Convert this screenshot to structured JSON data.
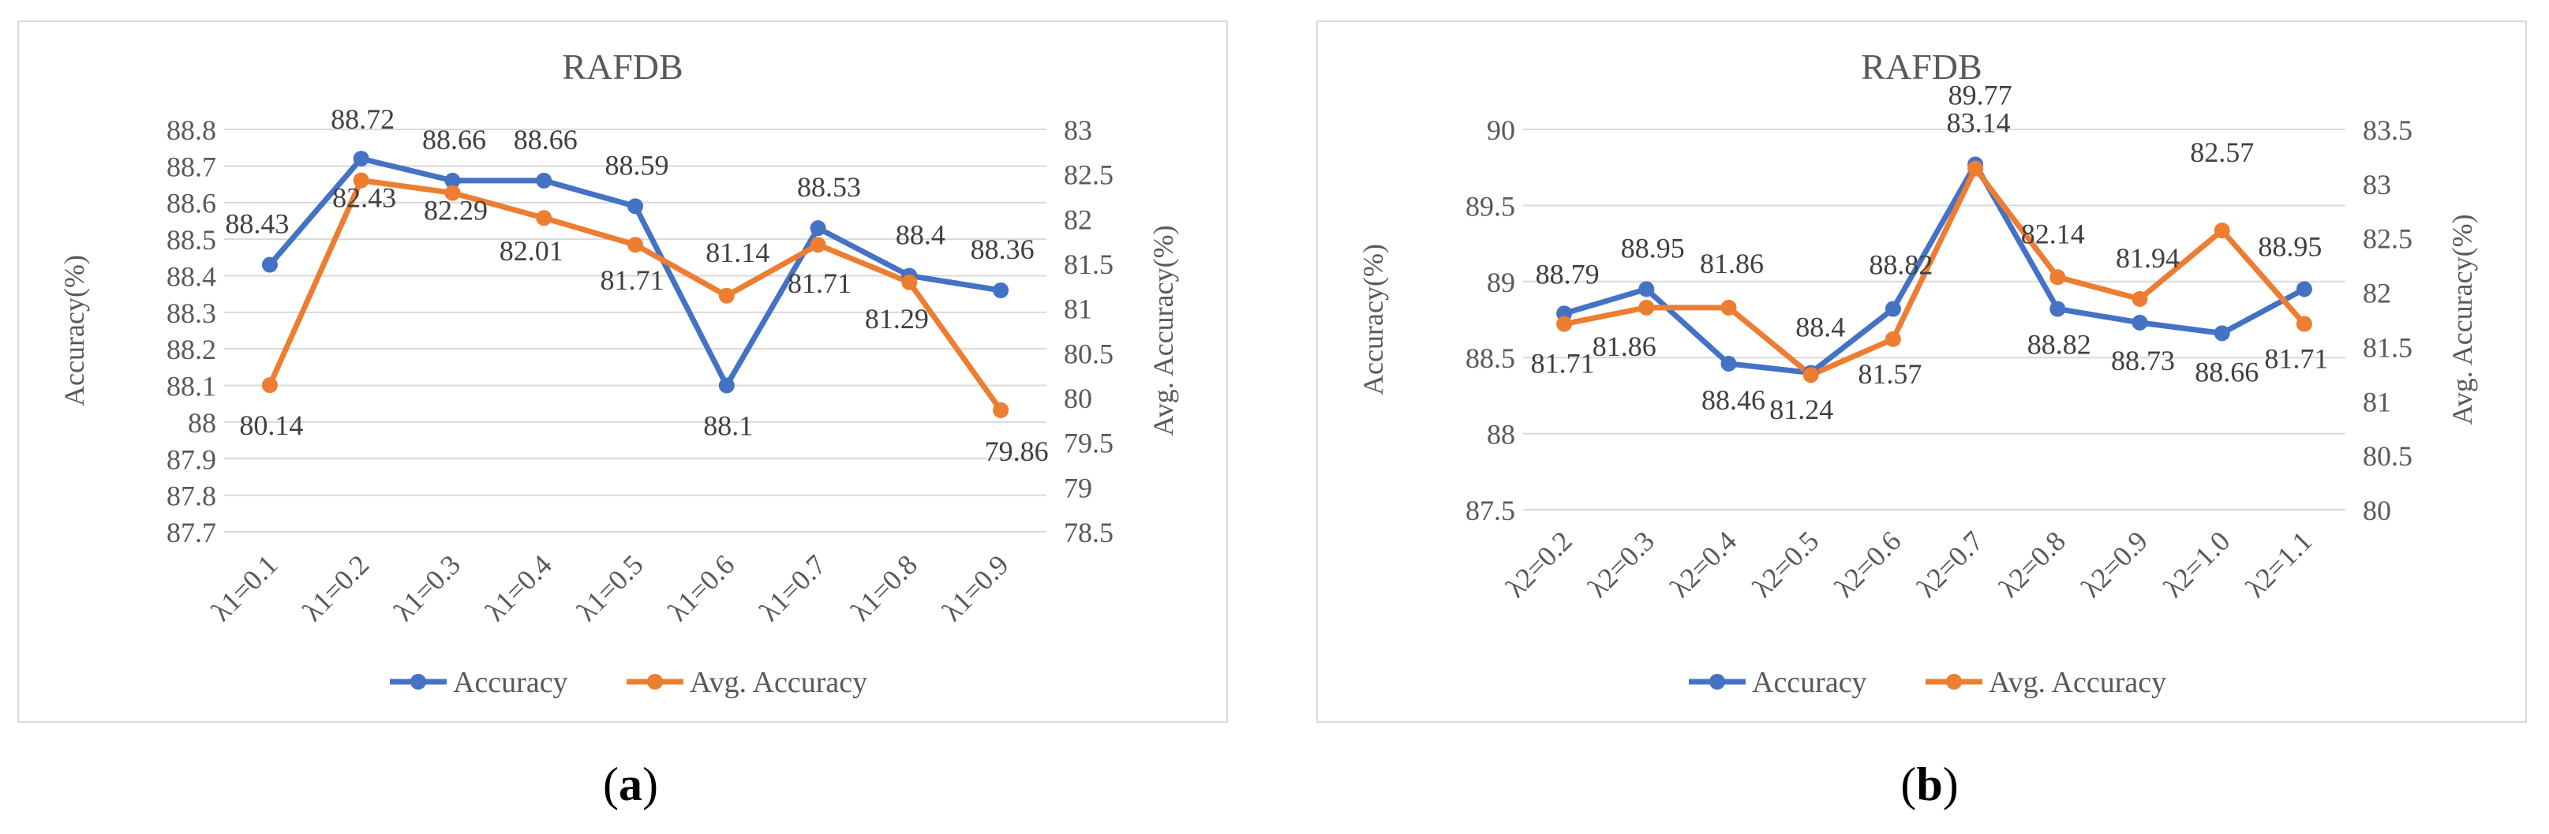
{
  "chart_data": [
    {
      "type": "line",
      "title": "RAFDB",
      "caption_letter": "a",
      "categories": [
        "λ1=0.1",
        "λ1=0.2",
        "λ1=0.3",
        "λ1=0.4",
        "λ1=0.5",
        "λ1=0.6",
        "λ1=0.7",
        "λ1=0.8",
        "λ1=0.9"
      ],
      "ylabel": "Accuracy(%)",
      "y2label": "Avg. Accuracy(%)",
      "ylim": [
        87.7,
        88.8
      ],
      "yticks": [
        "88.8",
        "88.7",
        "88.6",
        "88.5",
        "88.4",
        "88.3",
        "88.2",
        "88.1",
        "88",
        "87.9",
        "87.8",
        "87.7"
      ],
      "y2lim": [
        78.5,
        83
      ],
      "y2ticks": [
        "83",
        "82.5",
        "82",
        "81.5",
        "81",
        "80.5",
        "80",
        "79.5",
        "79",
        "78.5"
      ],
      "grid": true,
      "legend": "bottom",
      "series": [
        {
          "name": "Accuracy",
          "axis": "left",
          "color": "#4472c4",
          "values": [
            88.43,
            88.72,
            88.66,
            88.66,
            88.59,
            88.1,
            88.53,
            88.4,
            88.36
          ],
          "labels": [
            "88.43",
            "88.72",
            "88.66",
            "88.66",
            "88.59",
            "88.1",
            "88.53",
            "88.4",
            "88.36"
          ]
        },
        {
          "name": "Avg. Accuracy",
          "axis": "right",
          "color": "#ed7d31",
          "values": [
            80.14,
            82.43,
            82.29,
            82.01,
            81.71,
            81.14,
            81.71,
            81.29,
            79.86
          ],
          "labels": [
            "80.14",
            "82.43",
            "82.29",
            "82.01",
            "81.71",
            "81.14",
            "81.71",
            "81.29",
            "79.86"
          ]
        }
      ]
    },
    {
      "type": "line",
      "title": "RAFDB",
      "caption_letter": "b",
      "categories": [
        "λ2=0.2",
        "λ2=0.3",
        "λ2=0.4",
        "λ2=0.5",
        "λ2=0.6",
        "λ2=0.7",
        "λ2=0.8",
        "λ2=0.9",
        "λ2=1.0",
        "λ2=1.1"
      ],
      "ylabel": "Accuracy(%)",
      "y2label": "Avg. Accuracy(%)",
      "ylim": [
        87.5,
        90
      ],
      "yticks": [
        "90",
        "89.5",
        "89",
        "88.5",
        "88",
        "87.5"
      ],
      "y2lim": [
        80,
        83.5
      ],
      "y2ticks": [
        "83.5",
        "83",
        "82.5",
        "82",
        "81.5",
        "81",
        "80.5",
        "80"
      ],
      "grid": true,
      "legend": "bottom",
      "series": [
        {
          "name": "Accuracy",
          "axis": "left",
          "color": "#4472c4",
          "values": [
            88.79,
            88.95,
            88.46,
            88.4,
            88.82,
            89.77,
            88.82,
            88.73,
            88.66,
            88.95
          ],
          "labels": [
            "88.79",
            "88.95",
            "88.46",
            "88.4",
            "88.82",
            "89.77",
            "88.82",
            "88.73",
            "88.66",
            "88.95"
          ]
        },
        {
          "name": "Avg. Accuracy",
          "axis": "right",
          "color": "#ed7d31",
          "values": [
            81.71,
            81.86,
            81.86,
            81.24,
            81.57,
            83.14,
            82.14,
            81.94,
            82.57,
            81.71
          ],
          "labels": [
            "81.71",
            "81.86",
            "81.86",
            "81.24",
            "81.57",
            "83.14",
            "82.14",
            "81.94",
            "82.57",
            "81.71"
          ]
        }
      ]
    }
  ]
}
